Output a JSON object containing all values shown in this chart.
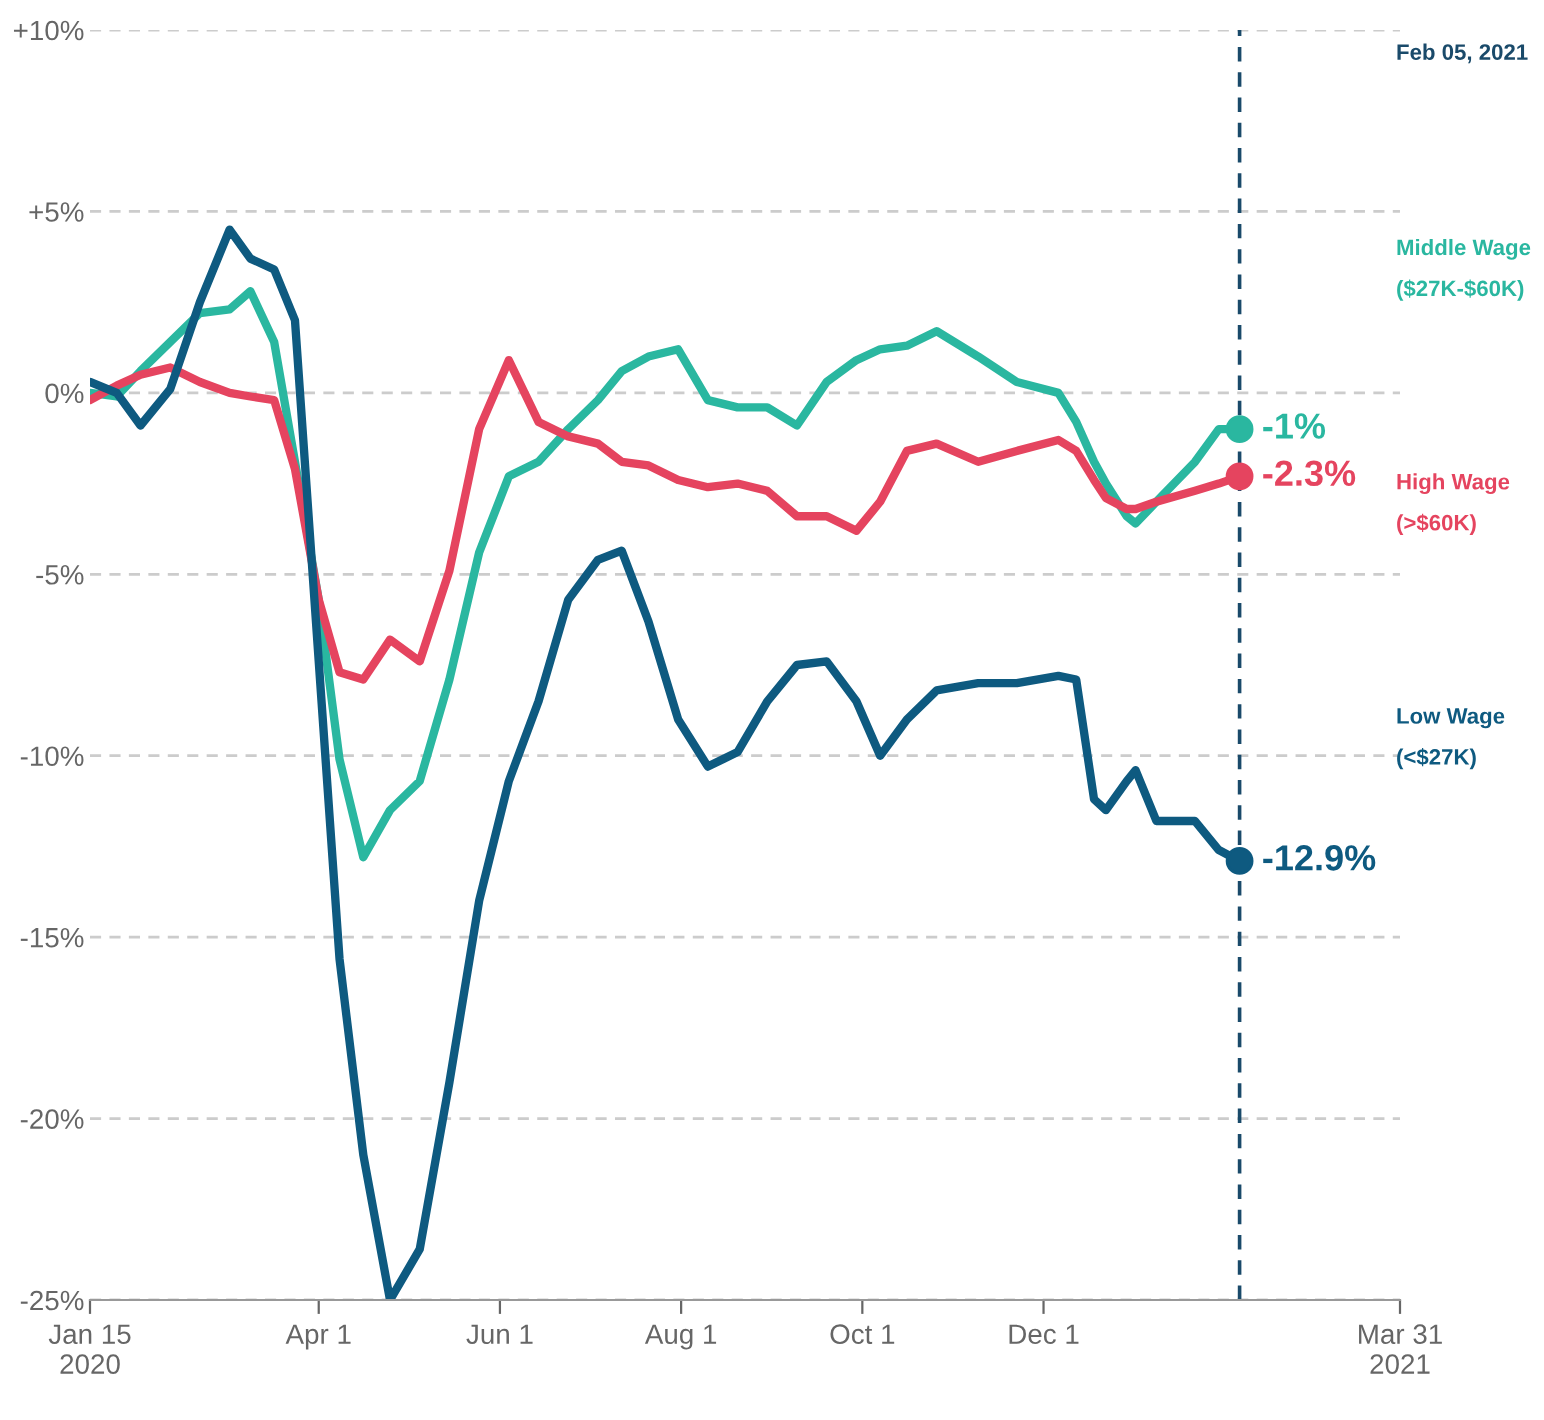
{
  "chart_data": {
    "type": "line",
    "x": [
      "2020-01-15",
      "2020-01-24",
      "2020-02-01",
      "2020-02-11",
      "2020-02-21",
      "2020-03-02",
      "2020-03-09",
      "2020-03-17",
      "2020-03-24",
      "2020-04-01",
      "2020-04-08",
      "2020-04-16",
      "2020-04-25",
      "2020-05-05",
      "2020-05-15",
      "2020-05-25",
      "2020-06-04",
      "2020-06-14",
      "2020-06-24",
      "2020-07-04",
      "2020-07-12",
      "2020-07-21",
      "2020-07-31",
      "2020-08-10",
      "2020-08-20",
      "2020-08-30",
      "2020-09-09",
      "2020-09-19",
      "2020-09-29",
      "2020-10-07",
      "2020-10-16",
      "2020-10-26",
      "2020-11-09",
      "2020-11-22",
      "2020-12-06",
      "2020-12-12",
      "2020-12-18",
      "2020-12-22",
      "2020-12-29",
      "2021-01-01",
      "2021-01-08",
      "2021-01-21",
      "2021-01-29",
      "2021-02-05"
    ],
    "series": [
      {
        "name": "Middle Wage ($27K-$60K)",
        "color": "#2ab7a0",
        "values": [
          0,
          -0.1,
          0.6,
          1.4,
          2.2,
          2.3,
          2.8,
          1.4,
          -1.9,
          -5.7,
          -10.1,
          -12.8,
          -11.5,
          -10.7,
          -7.9,
          -4.4,
          -2.3,
          -1.9,
          -1.0,
          -0.2,
          0.6,
          1.0,
          1.2,
          -0.2,
          -0.4,
          -0.4,
          -0.9,
          0.3,
          0.9,
          1.2,
          1.3,
          1.7,
          1.0,
          0.3,
          0,
          -0.8,
          -1.9,
          -2.5,
          -3.4,
          -3.6,
          -3.0,
          -1.9,
          -1.0,
          -1
        ],
        "value_labels": [
          null,
          null,
          null,
          null,
          null,
          null,
          null,
          null,
          null,
          null,
          null,
          null,
          null,
          null,
          null,
          null,
          null,
          null,
          null,
          null,
          null,
          null,
          null,
          null,
          null,
          null,
          null,
          null,
          null,
          null,
          null,
          null,
          null,
          null,
          null,
          null,
          null,
          null,
          null,
          null,
          null,
          null,
          null,
          "-1%"
        ]
      },
      {
        "name": "High Wage (>$60K)",
        "color": "#e5445f",
        "values": [
          -0.2,
          0.2,
          0.5,
          0.7,
          0.3,
          0,
          -0.1,
          -0.2,
          -2.1,
          -5.7,
          -7.7,
          -7.9,
          -6.8,
          -7.4,
          -4.9,
          -1.0,
          0.9,
          -0.8,
          -1.2,
          -1.4,
          -1.9,
          -2.0,
          -2.4,
          -2.6,
          -2.5,
          -2.7,
          -3.4,
          -3.4,
          -3.8,
          -3.0,
          -1.6,
          -1.4,
          -1.9,
          -1.6,
          -1.3,
          -1.6,
          -2.4,
          -2.9,
          -3.2,
          -3.2,
          -3.0,
          -2.7,
          -2.5,
          -2.3
        ],
        "value_labels": [
          null,
          null,
          null,
          null,
          null,
          null,
          null,
          null,
          null,
          null,
          null,
          null,
          null,
          null,
          null,
          null,
          null,
          null,
          null,
          null,
          null,
          null,
          null,
          null,
          null,
          null,
          null,
          null,
          null,
          null,
          null,
          null,
          null,
          null,
          null,
          null,
          null,
          null,
          null,
          null,
          null,
          null,
          null,
          "-2.3%"
        ]
      },
      {
        "name": "Low Wage (<$27K)",
        "color": "#0e5a80",
        "values": [
          0.3,
          0,
          -0.9,
          0.1,
          2.5,
          4.5,
          3.7,
          3.4,
          2.0,
          -7.4,
          -15.6,
          -21.0,
          -25.0,
          -23.6,
          -19.0,
          -14.0,
          -10.7,
          -8.5,
          -5.7,
          -4.6,
          -4.35,
          -6.3,
          -9.0,
          -10.3,
          -9.9,
          -8.5,
          -7.5,
          -7.4,
          -8.5,
          -10.0,
          -9.0,
          -8.2,
          -8.0,
          -8.0,
          -7.8,
          -7.9,
          -11.2,
          -11.5,
          -10.7,
          -10.4,
          -11.8,
          -11.8,
          -12.6,
          -12.9
        ],
        "value_labels": [
          null,
          null,
          null,
          null,
          null,
          null,
          null,
          null,
          null,
          null,
          null,
          null,
          null,
          null,
          null,
          null,
          null,
          null,
          null,
          null,
          null,
          null,
          null,
          null,
          null,
          null,
          null,
          null,
          null,
          null,
          null,
          null,
          null,
          null,
          null,
          null,
          null,
          null,
          null,
          null,
          null,
          null,
          null,
          "-12.9%"
        ]
      }
    ],
    "xlim": [
      "2020-01-15",
      "2021-03-31"
    ],
    "xticks": [
      {
        "value": "2020-01-15",
        "label": "Jan 15\n2020"
      },
      {
        "value": "2020-04-01",
        "label": "Apr 1"
      },
      {
        "value": "2020-06-01",
        "label": "Jun 1"
      },
      {
        "value": "2020-08-01",
        "label": "Aug 1"
      },
      {
        "value": "2020-10-01",
        "label": "Oct 1"
      },
      {
        "value": "2020-12-01",
        "label": "Dec 1"
      },
      {
        "value": "2021-03-31",
        "label": "Mar 31\n2021"
      }
    ],
    "ylim": [
      -25,
      10
    ],
    "yticks": [
      {
        "value": 10,
        "label": "+10%"
      },
      {
        "value": 5,
        "label": "+5%"
      },
      {
        "value": 0,
        "label": "0%"
      },
      {
        "value": -5,
        "label": "-5%"
      },
      {
        "value": -10,
        "label": "-10%"
      },
      {
        "value": -15,
        "label": "-15%"
      },
      {
        "value": -20,
        "label": "-20%"
      },
      {
        "value": -25,
        "label": "-25%"
      }
    ],
    "grid": "y",
    "ref_lines": [
      {
        "axis": "x",
        "value": "2021-02-05",
        "label": "Feb 05, 2021",
        "color": "#1a4a6a",
        "line_style": "dashed"
      }
    ]
  }
}
